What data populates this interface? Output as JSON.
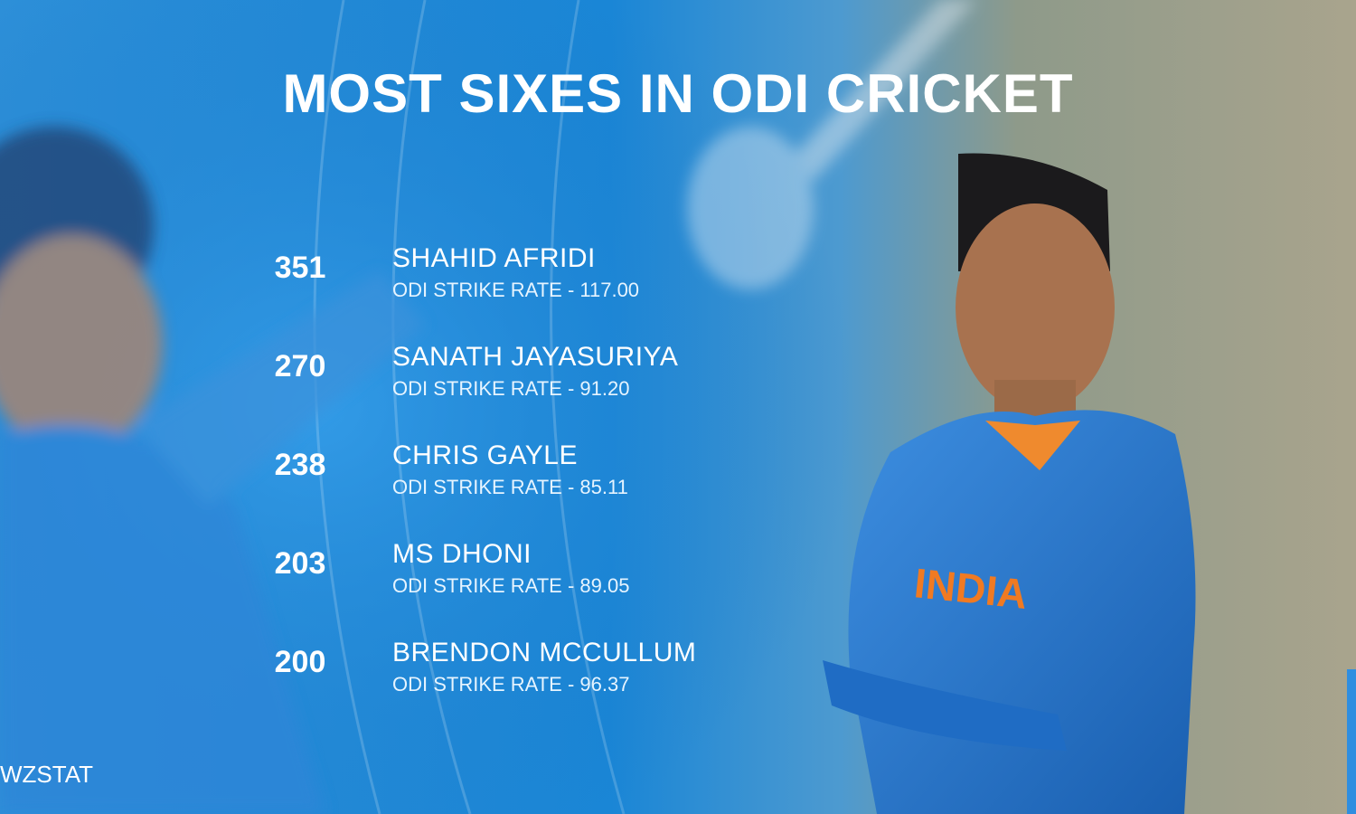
{
  "header": {
    "title": "MOST SIXES IN ODI CRICKET"
  },
  "rows": [
    {
      "sixes": 351,
      "name": "SHAHID AFRIDI",
      "detail": "ODI STRIKE RATE - 117.00"
    },
    {
      "sixes": 270,
      "name": "SANATH JAYASURIYA",
      "detail": "ODI STRIKE RATE - 91.20"
    },
    {
      "sixes": 238,
      "name": "CHRIS GAYLE",
      "detail": "ODI STRIKE RATE - 85.11"
    },
    {
      "sixes": 203,
      "name": "MS DHONI",
      "detail": "ODI STRIKE RATE - 89.05"
    },
    {
      "sixes": 200,
      "name": "BRENDON MCCULLUM",
      "detail": "ODI STRIKE RATE - 96.37"
    }
  ],
  "footer": {
    "handle": "WZSTAT"
  }
}
